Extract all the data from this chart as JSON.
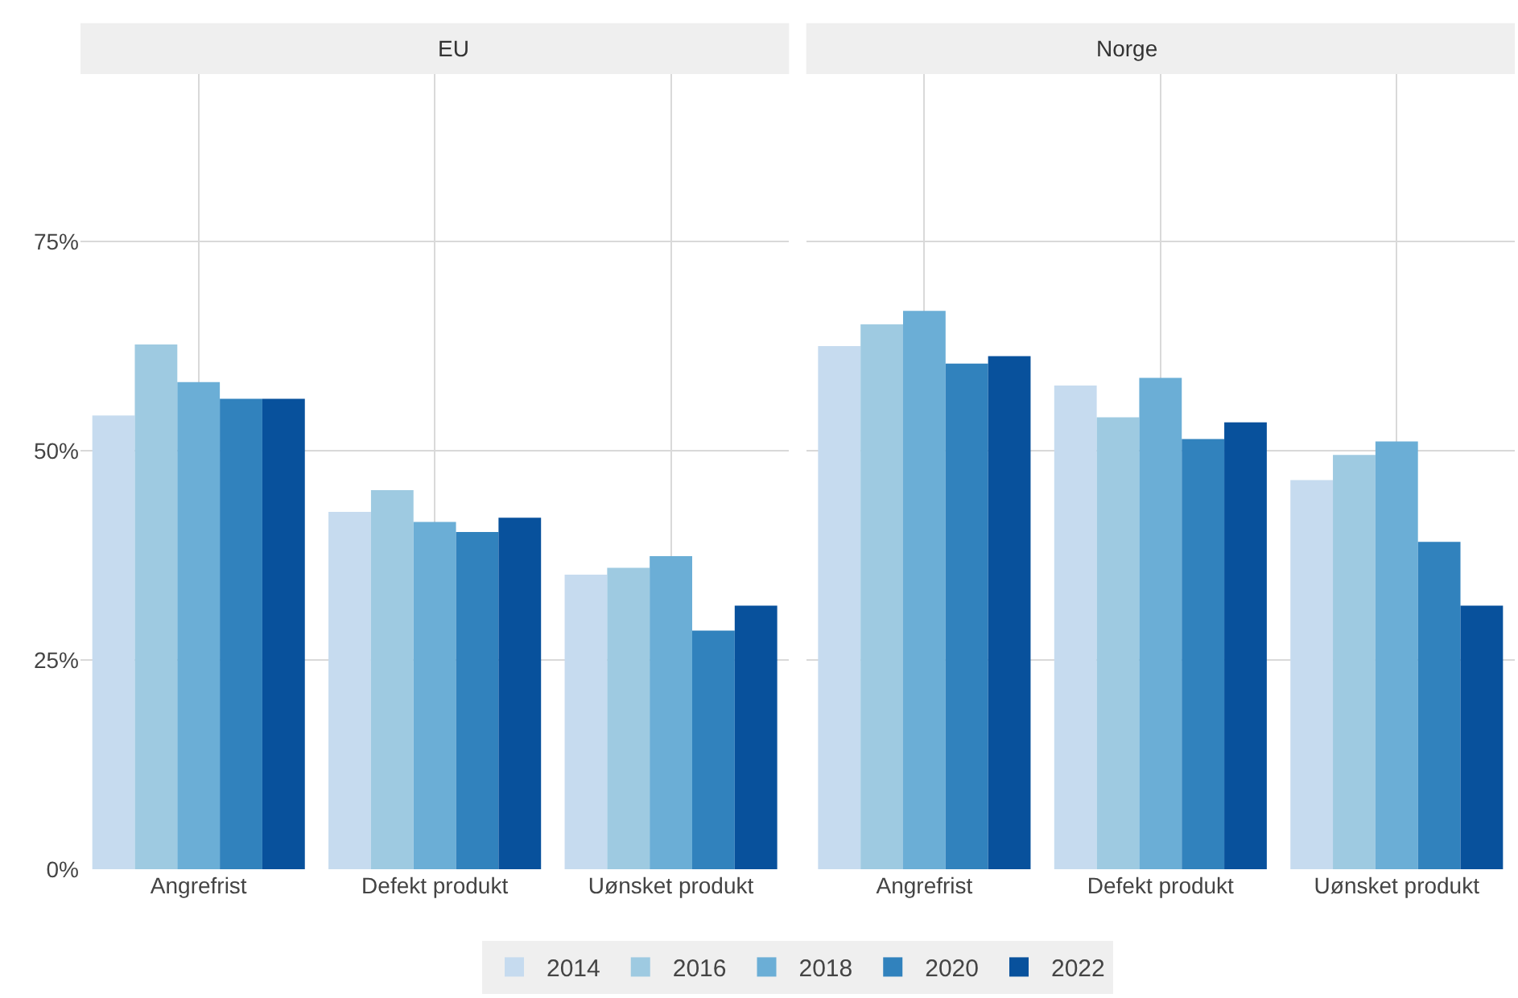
{
  "chart_data": [
    {
      "type": "bar",
      "title": "EU",
      "categories": [
        "Angrefrist",
        "Defekt produkt",
        "Uønsket produkt"
      ],
      "ylim": [
        0,
        95
      ],
      "yticks": [
        {
          "value": 0,
          "label": "0%"
        },
        {
          "value": 25,
          "label": "25%"
        },
        {
          "value": 50,
          "label": "50%"
        },
        {
          "value": 75,
          "label": "75%"
        }
      ],
      "grid": true,
      "legend": "bottom",
      "series": [
        {
          "name": "2014",
          "color": "#c6dbef",
          "values": [
            54.2,
            42.7,
            35.2
          ]
        },
        {
          "name": "2016",
          "color": "#9ecae1",
          "values": [
            62.7,
            45.3,
            36.0
          ]
        },
        {
          "name": "2018",
          "color": "#6baed6",
          "values": [
            58.2,
            41.5,
            37.4
          ]
        },
        {
          "name": "2020",
          "color": "#3182bd",
          "values": [
            56.2,
            40.3,
            28.5
          ]
        },
        {
          "name": "2022",
          "color": "#08519c",
          "values": [
            56.2,
            42.0,
            31.5
          ]
        }
      ]
    },
    {
      "type": "bar",
      "title": "Norge",
      "categories": [
        "Angrefrist",
        "Defekt produkt",
        "Uønsket produkt"
      ],
      "ylim": [
        0,
        95
      ],
      "yticks": [
        {
          "value": 0,
          "label": null
        },
        {
          "value": 25,
          "label": null
        },
        {
          "value": 50,
          "label": null
        },
        {
          "value": 75,
          "label": null
        }
      ],
      "grid": true,
      "tick_labels": "x",
      "series": [
        {
          "name": "2014",
          "color": "#c6dbef",
          "values": [
            62.5,
            57.8,
            46.5
          ]
        },
        {
          "name": "2016",
          "color": "#9ecae1",
          "values": [
            65.1,
            54.0,
            49.5
          ]
        },
        {
          "name": "2018",
          "color": "#6baed6",
          "values": [
            66.7,
            58.7,
            51.1
          ]
        },
        {
          "name": "2020",
          "color": "#3182bd",
          "values": [
            60.4,
            51.4,
            39.1
          ]
        },
        {
          "name": "2022",
          "color": "#08519c",
          "values": [
            61.3,
            53.4,
            31.5
          ]
        }
      ]
    }
  ]
}
